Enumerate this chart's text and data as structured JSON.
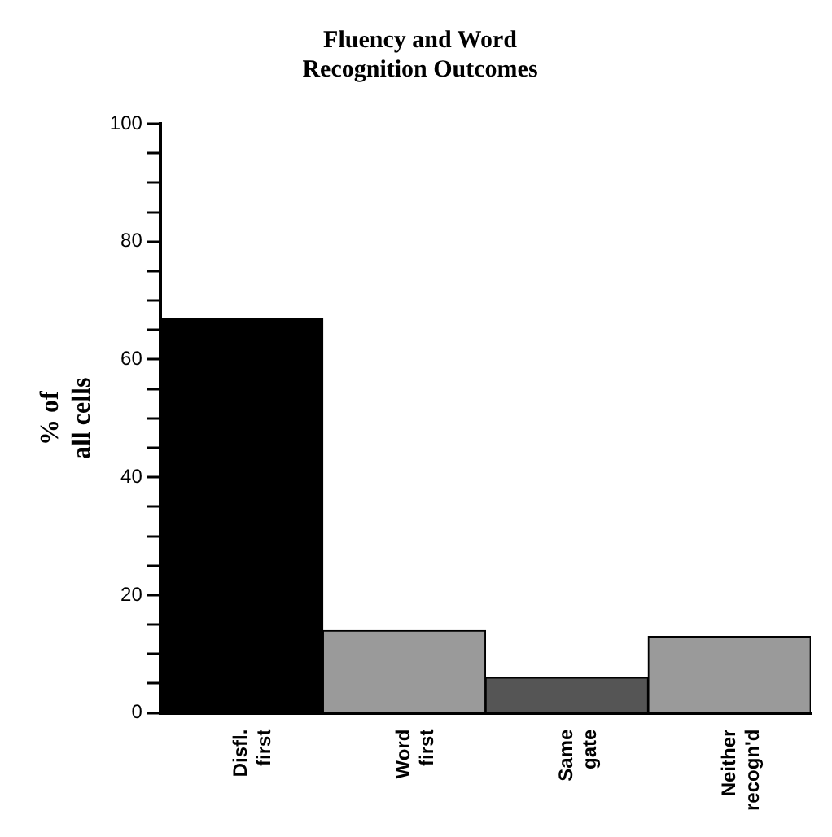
{
  "chart_data": {
    "type": "bar",
    "title": "Fluency and Word\nRecognition Outcomes",
    "ylabel": "% of\nall cells",
    "categories": [
      "Disfl.\nfirst",
      "Word\nfirst",
      "Same\ngate",
      "Neither\nrecogn'd"
    ],
    "values": [
      67,
      14,
      6,
      13
    ],
    "colors": [
      "#000000",
      "#9a9a9a",
      "#555555",
      "#9a9a9a"
    ],
    "ylim": [
      0,
      100
    ],
    "yticks": [
      0,
      {
        "value": 5,
        "label": null
      },
      {
        "value": 10,
        "label": null
      },
      {
        "value": 15,
        "label": null
      },
      20,
      {
        "value": 25,
        "label": null
      },
      {
        "value": 30,
        "label": null
      },
      {
        "value": 35,
        "label": null
      },
      40,
      {
        "value": 45,
        "label": null
      },
      {
        "value": 50,
        "label": null
      },
      {
        "value": 55,
        "label": null
      },
      60,
      {
        "value": 65,
        "label": null
      },
      {
        "value": 70,
        "label": null
      },
      {
        "value": 75,
        "label": null
      },
      80,
      {
        "value": 85,
        "label": null
      },
      {
        "value": 90,
        "label": null
      },
      {
        "value": 95,
        "label": null
      },
      100
    ],
    "grid": false,
    "legend": false
  }
}
